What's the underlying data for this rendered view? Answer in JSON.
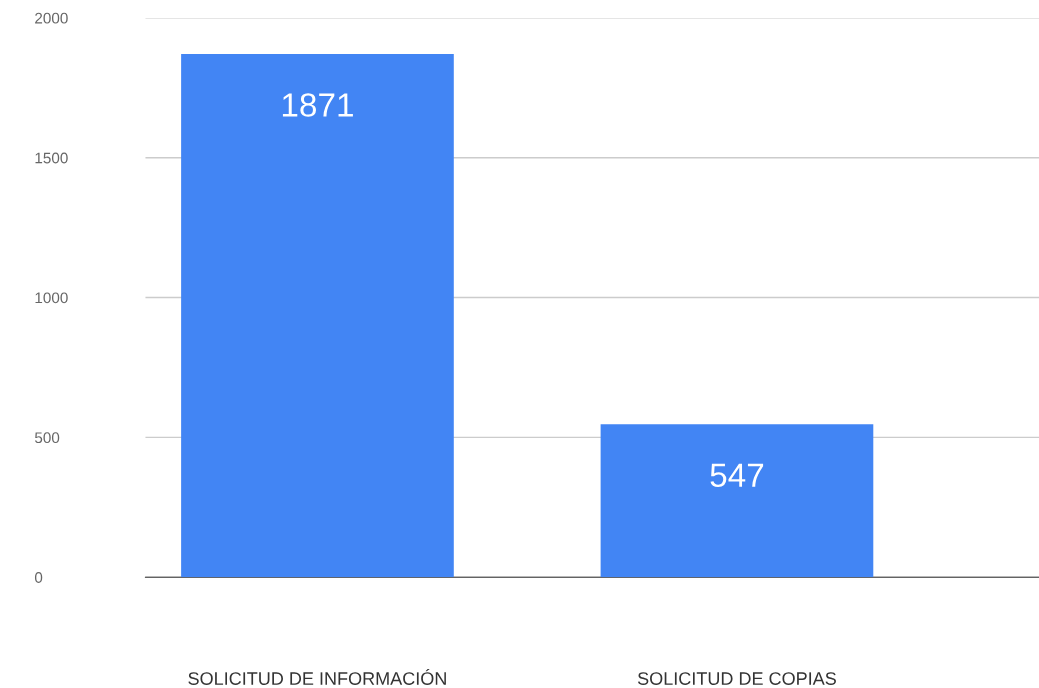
{
  "chart_data": {
    "type": "bar",
    "categories": [
      "SOLICITUD DE INFORMACIÓN",
      "SOLICITUD DE COPIAS"
    ],
    "values": [
      1871,
      547
    ],
    "color": "#4285f4",
    "ylim": [
      0,
      2000
    ],
    "yticks": [
      0,
      500,
      1000,
      1500,
      2000
    ],
    "grid": "y",
    "data_labels": true,
    "legend": false
  }
}
